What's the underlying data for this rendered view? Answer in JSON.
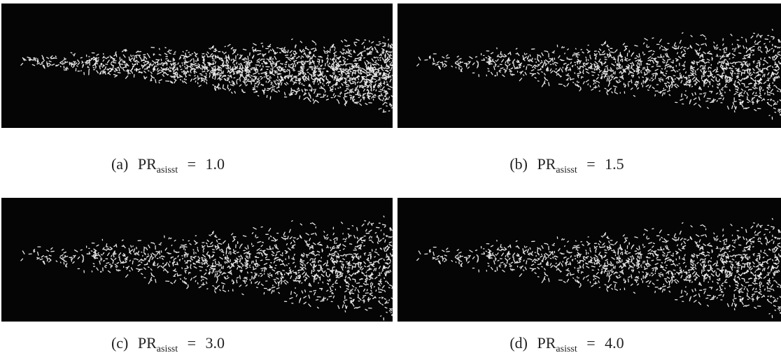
{
  "panels": [
    {
      "caption": {
        "label": "(a)",
        "symbol": "PR",
        "subscript": "asisst",
        "relation": "=",
        "value": "1.0"
      }
    },
    {
      "caption": {
        "label": "(b)",
        "symbol": "PR",
        "subscript": "asisst",
        "relation": "=",
        "value": "1.5"
      }
    },
    {
      "caption": {
        "label": "(c)",
        "symbol": "PR",
        "subscript": "asisst",
        "relation": "=",
        "value": "3.0"
      }
    },
    {
      "caption": {
        "label": "(d)",
        "symbol": "PR",
        "subscript": "asisst",
        "relation": "=",
        "value": "4.0"
      }
    }
  ]
}
